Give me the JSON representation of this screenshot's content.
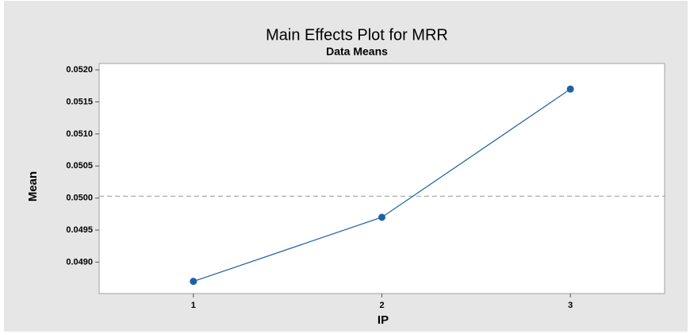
{
  "chart_data": {
    "type": "line",
    "title": "Main Effects Plot for MRR",
    "subtitle": "Data Means",
    "x_label": "IP",
    "y_label": "Mean",
    "x": [
      1,
      2,
      3
    ],
    "series": [
      {
        "name": "MRR",
        "color": "#1f5fa6",
        "values": [
          0.0487,
          0.0497,
          0.0517
        ]
      }
    ],
    "reference_line": 0.05003,
    "xlim": [
      0.5,
      3.5
    ],
    "xticks": [
      1,
      2,
      3
    ],
    "ylim": [
      0.04851,
      0.0521
    ],
    "yticks": [
      {
        "value": 0.049,
        "label": "0.0490"
      },
      {
        "value": 0.0495,
        "label": "0.0495"
      },
      {
        "value": 0.05,
        "label": "0.0500"
      },
      {
        "value": 0.0505,
        "label": "0.0505"
      },
      {
        "value": 0.051,
        "label": "0.0510"
      },
      {
        "value": 0.0515,
        "label": "0.0515"
      },
      {
        "value": 0.052,
        "label": "0.0520"
      }
    ]
  }
}
